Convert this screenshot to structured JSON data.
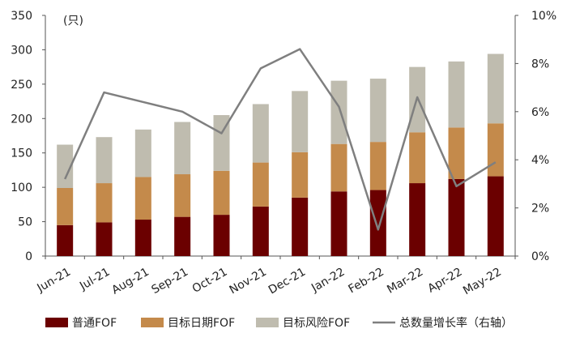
{
  "chart_data": {
    "type": "bar",
    "stacked": true,
    "categories": [
      "Jun-21",
      "Jul-21",
      "Aug-21",
      "Sep-21",
      "Oct-21",
      "Nov-21",
      "Dec-21",
      "Jan-22",
      "Feb-22",
      "Mar-22",
      "Apr-22",
      "May-22"
    ],
    "series": [
      {
        "name": "普通FOF",
        "color": "#6b0000",
        "values": [
          45,
          49,
          53,
          57,
          60,
          72,
          85,
          94,
          96,
          106,
          112,
          116
        ]
      },
      {
        "name": "目标日期FOF",
        "color": "#c48a4b",
        "values": [
          54,
          57,
          62,
          62,
          64,
          64,
          66,
          69,
          70,
          74,
          75,
          77
        ]
      },
      {
        "name": "目标风险FOF",
        "color": "#bfbcaf",
        "values": [
          63,
          67,
          69,
          76,
          81,
          85,
          89,
          92,
          92,
          95,
          96,
          101
        ]
      }
    ],
    "line": {
      "name": "总数量增长率（右轴）",
      "color": "#7f7f7f",
      "axis": "right",
      "unit": "%",
      "values": [
        3.2,
        6.8,
        6.4,
        6.0,
        5.1,
        7.8,
        8.6,
        6.2,
        1.1,
        6.6,
        2.9,
        3.9
      ]
    },
    "left_axis": {
      "unit_label": "(只)",
      "ylim": [
        0,
        350
      ],
      "ticks": [
        "0",
        "50",
        "100",
        "150",
        "200",
        "250",
        "300",
        "350"
      ]
    },
    "right_axis": {
      "ylim": [
        0,
        10
      ],
      "ticks": [
        "0%",
        "2%",
        "4%",
        "6%",
        "8%",
        "10%"
      ]
    },
    "grid": false,
    "legend_position": "bottom"
  }
}
